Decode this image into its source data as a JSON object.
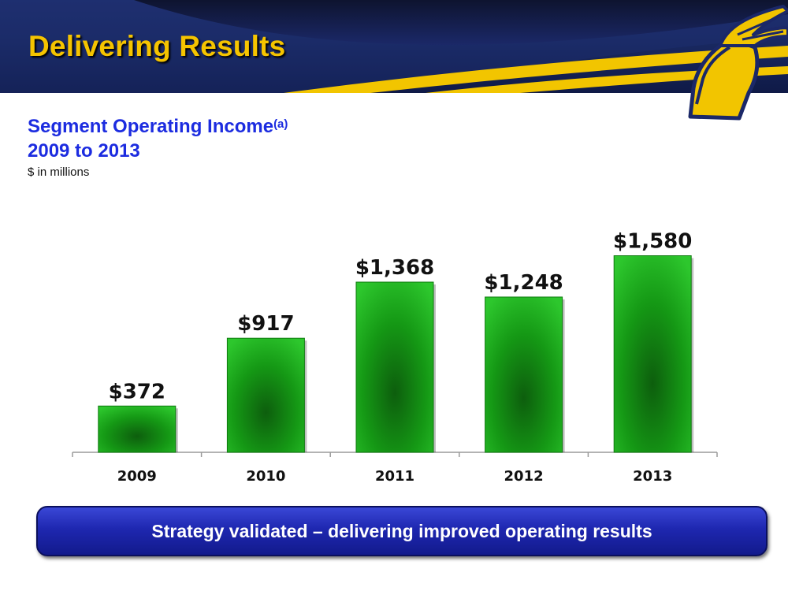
{
  "slide": {
    "title": "Delivering Results",
    "subtitle_line1": "Segment Operating Income",
    "subtitle_footnote": "(a)",
    "subtitle_line2": "2009 to 2013",
    "units": "$ in millions",
    "banner_text": "Strategy validated – delivering improved operating results"
  },
  "colors": {
    "title": "#f5c400",
    "subtitle": "#1c2ce0",
    "bar": "#1aa51a",
    "banner": "#1e27b0",
    "header": "#1a2a63",
    "accent_yellow": "#f2c500"
  },
  "icons": {
    "logo": "goodyear-wingfoot-icon"
  },
  "chart_data": {
    "type": "bar",
    "categories": [
      "2009",
      "2010",
      "2011",
      "2012",
      "2013"
    ],
    "values": [
      372,
      917,
      1368,
      1248,
      1580
    ],
    "value_labels": [
      "$372",
      "$917",
      "$1,368",
      "$1,248",
      "$1,580"
    ],
    "ylim": [
      0,
      1900
    ],
    "grid": false,
    "legend": "none"
  }
}
